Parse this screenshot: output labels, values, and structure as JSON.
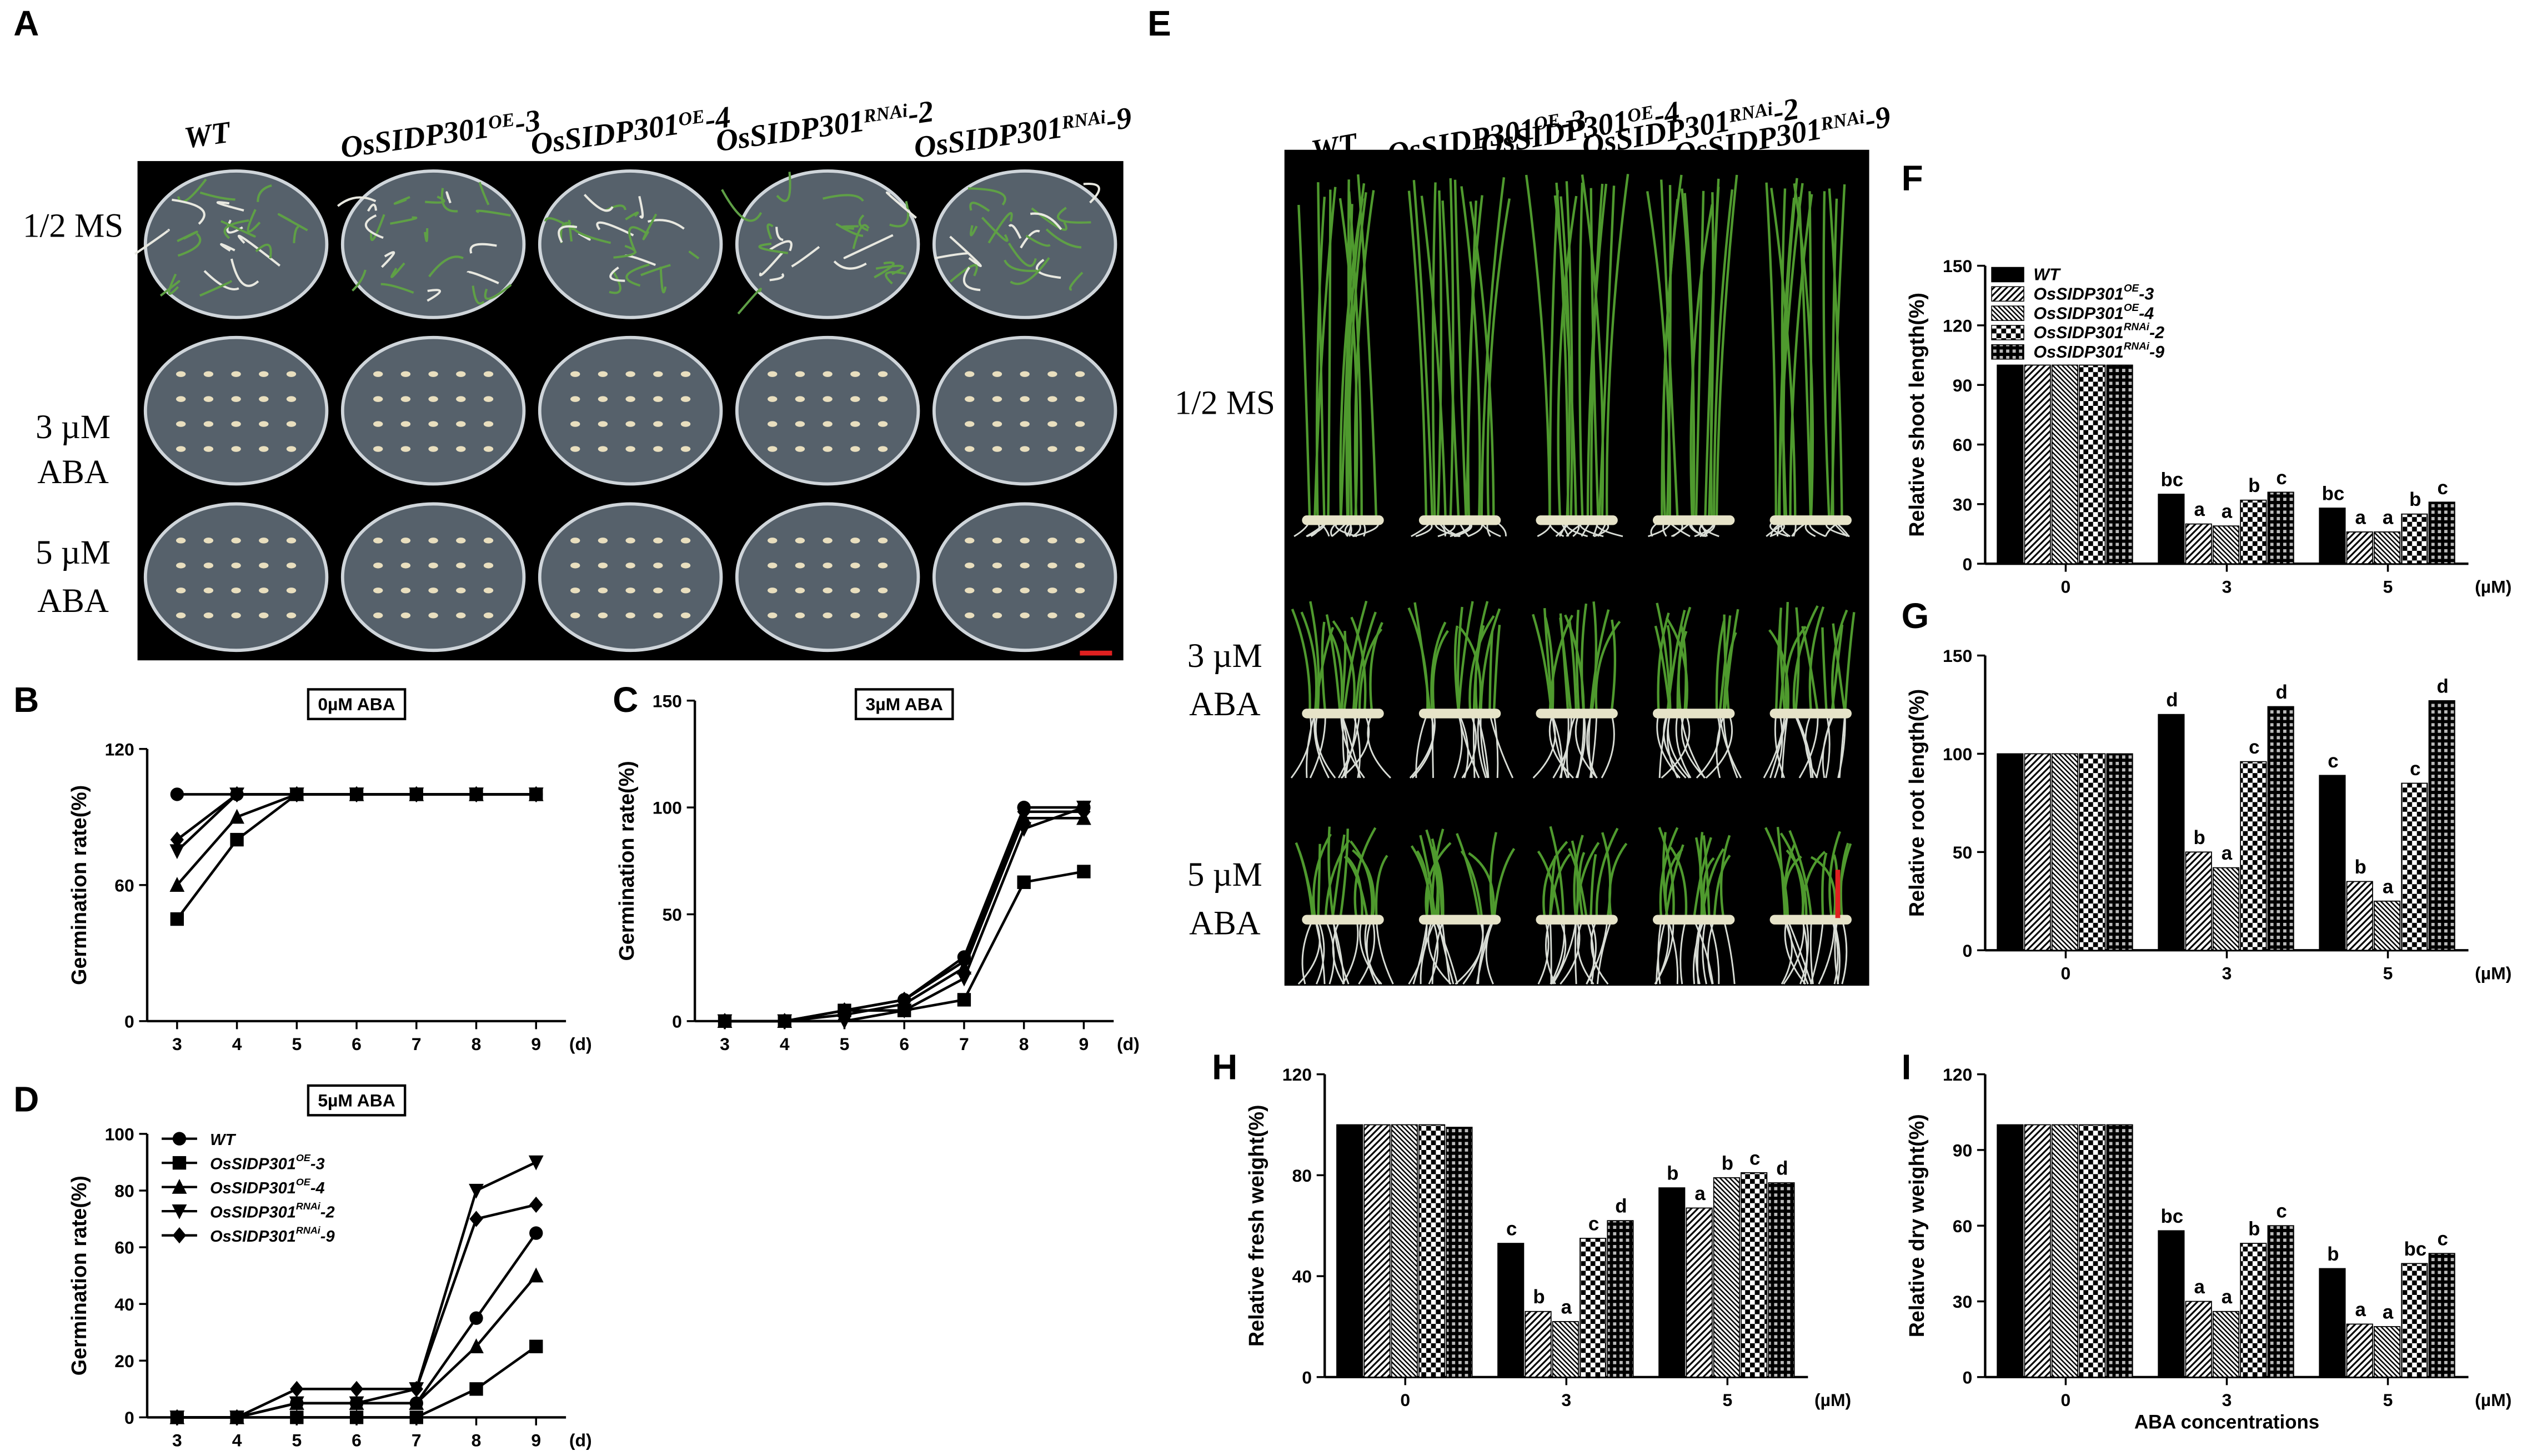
{
  "photo_panels": [
    {
      "panel": "A",
      "columns": [
        {
          "text": "WT"
        },
        {
          "text": "OsSIDP301",
          "sup": "OE",
          "suffix": "-3"
        },
        {
          "text": "OsSIDP301",
          "sup": "OE",
          "suffix": "-4"
        },
        {
          "text": "OsSIDP301",
          "sup": "RNAi",
          "suffix": "-2"
        },
        {
          "text": "OsSIDP301",
          "sup": "RNAi",
          "suffix": "-9"
        }
      ],
      "rows": [
        [
          "1/2 MS"
        ],
        [
          "3 µM",
          "ABA"
        ],
        [
          "5 µM",
          "ABA"
        ]
      ]
    },
    {
      "panel": "E",
      "columns": [
        {
          "text": "WT"
        },
        {
          "text": "OsSIDP301",
          "sup": "OE",
          "suffix": "-3"
        },
        {
          "text": "OsSIDP301",
          "sup": "OE",
          "suffix": "-4"
        },
        {
          "text": "OsSIDP301",
          "sup": "RNAi",
          "suffix": "-2"
        },
        {
          "text": "OsSIDP301",
          "sup": "RNAi",
          "suffix": "-9"
        }
      ],
      "rows": [
        [
          "1/2 MS"
        ],
        [
          "3 µM",
          "ABA"
        ],
        [
          "5 µM",
          "ABA"
        ]
      ]
    }
  ],
  "chart_data": [
    {
      "type": "line",
      "panel": "B",
      "title": "0µM ABA",
      "ylabel": "Germination rate(%)",
      "xlabel": "(d)",
      "x": [
        3,
        4,
        5,
        6,
        7,
        8,
        9
      ],
      "xlim": [
        2.5,
        9.5
      ],
      "xticks": [
        3,
        4,
        5,
        6,
        7,
        8,
        9
      ],
      "ylim": [
        0,
        120
      ],
      "yticks": [
        0,
        60,
        120
      ],
      "legend": false,
      "series": [
        {
          "name": {
            "text": "WT"
          },
          "color": "#000000",
          "marker": "circle",
          "values": [
            100,
            100,
            100,
            100,
            100,
            100,
            100
          ]
        },
        {
          "name": {
            "text": "OsSIDP301",
            "sup": "OE",
            "suffix": "-3"
          },
          "color": "#000000",
          "marker": "square",
          "values": [
            45,
            80,
            100,
            100,
            100,
            100,
            100
          ]
        },
        {
          "name": {
            "text": "OsSIDP301",
            "sup": "OE",
            "suffix": "-4"
          },
          "color": "#000000",
          "marker": "triangle-up",
          "values": [
            60,
            90,
            100,
            100,
            100,
            100,
            100
          ]
        },
        {
          "name": {
            "text": "OsSIDP301",
            "sup": "RNAi",
            "suffix": "-2"
          },
          "color": "#000000",
          "marker": "triangle-down",
          "values": [
            75,
            100,
            100,
            100,
            100,
            100,
            100
          ]
        },
        {
          "name": {
            "text": "OsSIDP301",
            "sup": "RNAi",
            "suffix": "-9"
          },
          "color": "#000000",
          "marker": "diamond",
          "values": [
            80,
            100,
            100,
            100,
            100,
            100,
            100
          ]
        }
      ]
    },
    {
      "type": "line",
      "panel": "C",
      "title": "3µM ABA",
      "ylabel": "Germination rate(%)",
      "xlabel": "(d)",
      "x": [
        3,
        4,
        5,
        6,
        7,
        8,
        9
      ],
      "xlim": [
        2.5,
        9.5
      ],
      "xticks": [
        3,
        4,
        5,
        6,
        7,
        8,
        9
      ],
      "ylim": [
        0,
        150
      ],
      "yticks": [
        0,
        50,
        100,
        150
      ],
      "legend": false,
      "series": [
        {
          "name": {
            "text": "WT"
          },
          "color": "#000000",
          "marker": "circle",
          "values": [
            0,
            0,
            5,
            10,
            30,
            100,
            100
          ]
        },
        {
          "name": {
            "text": "OsSIDP301",
            "sup": "OE",
            "suffix": "-3"
          },
          "color": "#000000",
          "marker": "square",
          "values": [
            0,
            0,
            5,
            5,
            10,
            65,
            70
          ]
        },
        {
          "name": {
            "text": "OsSIDP301",
            "sup": "OE",
            "suffix": "-4"
          },
          "color": "#000000",
          "marker": "triangle-up",
          "values": [
            0,
            0,
            3,
            8,
            25,
            95,
            95
          ]
        },
        {
          "name": {
            "text": "OsSIDP301",
            "sup": "RNAi",
            "suffix": "-2"
          },
          "color": "#000000",
          "marker": "triangle-down",
          "values": [
            0,
            0,
            0,
            5,
            20,
            90,
            100
          ]
        },
        {
          "name": {
            "text": "OsSIDP301",
            "sup": "RNAi",
            "suffix": "-9"
          },
          "color": "#000000",
          "marker": "diamond",
          "values": [
            0,
            0,
            5,
            10,
            28,
            98,
            98
          ]
        }
      ]
    },
    {
      "type": "line",
      "panel": "D",
      "title": "5µM ABA",
      "ylabel": "Germination rate(%)",
      "xlabel": "(d)",
      "x": [
        3,
        4,
        5,
        6,
        7,
        8,
        9
      ],
      "xlim": [
        2.5,
        9.5
      ],
      "xticks": [
        3,
        4,
        5,
        6,
        7,
        8,
        9
      ],
      "ylim": [
        0,
        100
      ],
      "yticks": [
        0,
        20,
        40,
        60,
        80,
        100
      ],
      "legend": true,
      "series": [
        {
          "name": {
            "text": "WT"
          },
          "color": "#000000",
          "marker": "circle",
          "values": [
            0,
            0,
            5,
            5,
            5,
            35,
            65
          ]
        },
        {
          "name": {
            "text": "OsSIDP301",
            "sup": "OE",
            "suffix": "-3"
          },
          "color": "#000000",
          "marker": "square",
          "values": [
            0,
            0,
            0,
            0,
            0,
            10,
            25
          ]
        },
        {
          "name": {
            "text": "OsSIDP301",
            "sup": "OE",
            "suffix": "-4"
          },
          "color": "#000000",
          "marker": "triangle-up",
          "values": [
            0,
            0,
            5,
            5,
            5,
            25,
            50
          ]
        },
        {
          "name": {
            "text": "OsSIDP301",
            "sup": "RNAi",
            "suffix": "-2"
          },
          "color": "#000000",
          "marker": "triangle-down",
          "values": [
            0,
            0,
            5,
            5,
            10,
            80,
            90
          ]
        },
        {
          "name": {
            "text": "OsSIDP301",
            "sup": "RNAi",
            "suffix": "-9"
          },
          "color": "#000000",
          "marker": "diamond",
          "values": [
            0,
            0,
            10,
            10,
            10,
            70,
            75
          ]
        }
      ]
    },
    {
      "type": "bar",
      "panel": "F",
      "ylabel": "Relative shoot length(%)",
      "x_unit": "(µM)",
      "categories": [
        "0",
        "3",
        "5"
      ],
      "ylim": [
        0,
        150
      ],
      "yticks": [
        0,
        30,
        60,
        90,
        120,
        150
      ],
      "legend": true,
      "series": [
        {
          "name": {
            "text": "WT"
          },
          "color": "#000000",
          "fill": "solid",
          "values": [
            100,
            35,
            28
          ],
          "letters": [
            null,
            "bc",
            "bc"
          ]
        },
        {
          "name": {
            "text": "OsSIDP301",
            "sup": "OE",
            "suffix": "-3"
          },
          "color": "#000000",
          "fill": "hatch-right",
          "values": [
            100,
            20,
            16
          ],
          "letters": [
            null,
            "a",
            "a"
          ]
        },
        {
          "name": {
            "text": "OsSIDP301",
            "sup": "OE",
            "suffix": "-4"
          },
          "color": "#000000",
          "fill": "hatch-left",
          "values": [
            100,
            19,
            16
          ],
          "letters": [
            null,
            "a",
            "a"
          ]
        },
        {
          "name": {
            "text": "OsSIDP301",
            "sup": "RNAi",
            "suffix": "-2"
          },
          "color": "#000000",
          "fill": "checker",
          "values": [
            100,
            32,
            25
          ],
          "letters": [
            null,
            "b",
            "b"
          ]
        },
        {
          "name": {
            "text": "OsSIDP301",
            "sup": "RNAi",
            "suffix": "-9"
          },
          "color": "#000000",
          "fill": "grid",
          "values": [
            100,
            36,
            31
          ],
          "letters": [
            null,
            "c",
            "c"
          ]
        }
      ]
    },
    {
      "type": "bar",
      "panel": "G",
      "ylabel": "Relative root length(%)",
      "x_unit": "(µM)",
      "categories": [
        "0",
        "3",
        "5"
      ],
      "ylim": [
        0,
        150
      ],
      "yticks": [
        0,
        50,
        100,
        150
      ],
      "legend": false,
      "series": [
        {
          "name": {
            "text": "WT"
          },
          "color": "#000000",
          "fill": "solid",
          "values": [
            100,
            120,
            89
          ],
          "letters": [
            null,
            "d",
            "c"
          ]
        },
        {
          "name": {
            "text": "OsSIDP301",
            "sup": "OE",
            "suffix": "-3"
          },
          "color": "#000000",
          "fill": "hatch-right",
          "values": [
            100,
            50,
            35
          ],
          "letters": [
            null,
            "b",
            "b"
          ]
        },
        {
          "name": {
            "text": "OsSIDP301",
            "sup": "OE",
            "suffix": "-4"
          },
          "color": "#000000",
          "fill": "hatch-left",
          "values": [
            100,
            42,
            25
          ],
          "letters": [
            null,
            "a",
            "a"
          ]
        },
        {
          "name": {
            "text": "OsSIDP301",
            "sup": "RNAi",
            "suffix": "-2"
          },
          "color": "#000000",
          "fill": "checker",
          "values": [
            100,
            96,
            85
          ],
          "letters": [
            null,
            "c",
            "c"
          ]
        },
        {
          "name": {
            "text": "OsSIDP301",
            "sup": "RNAi",
            "suffix": "-9"
          },
          "color": "#000000",
          "fill": "grid",
          "values": [
            100,
            124,
            127
          ],
          "letters": [
            null,
            "d",
            "d"
          ]
        }
      ]
    },
    {
      "type": "bar",
      "panel": "H",
      "ylabel": "Relative fresh weight(%)",
      "x_unit": "(µM)",
      "categories": [
        "0",
        "3",
        "5"
      ],
      "ylim": [
        0,
        120
      ],
      "yticks": [
        0,
        40,
        80,
        120
      ],
      "legend": false,
      "series": [
        {
          "name": {
            "text": "WT"
          },
          "color": "#000000",
          "fill": "solid",
          "values": [
            100,
            53,
            75
          ],
          "letters": [
            null,
            "c",
            "b"
          ]
        },
        {
          "name": {
            "text": "OsSIDP301",
            "sup": "OE",
            "suffix": "-3"
          },
          "color": "#000000",
          "fill": "hatch-right",
          "values": [
            100,
            26,
            67
          ],
          "letters": [
            null,
            "b",
            "a"
          ]
        },
        {
          "name": {
            "text": "OsSIDP301",
            "sup": "OE",
            "suffix": "-4"
          },
          "color": "#000000",
          "fill": "hatch-left",
          "values": [
            100,
            22,
            79
          ],
          "letters": [
            null,
            "a",
            "b"
          ]
        },
        {
          "name": {
            "text": "OsSIDP301",
            "sup": "RNAi",
            "suffix": "-2"
          },
          "color": "#000000",
          "fill": "checker",
          "values": [
            100,
            55,
            81
          ],
          "letters": [
            null,
            "c",
            "c"
          ]
        },
        {
          "name": {
            "text": "OsSIDP301",
            "sup": "RNAi",
            "suffix": "-9"
          },
          "color": "#000000",
          "fill": "grid",
          "values": [
            99,
            62,
            77
          ],
          "letters": [
            null,
            "d",
            "d"
          ]
        }
      ]
    },
    {
      "type": "bar",
      "panel": "I",
      "ylabel": "Relative dry weight(%)",
      "x_unit": "(µM)",
      "xlabel": "ABA concentrations",
      "categories": [
        "0",
        "3",
        "5"
      ],
      "ylim": [
        0,
        120
      ],
      "yticks": [
        0,
        30,
        60,
        90,
        120
      ],
      "legend": false,
      "series": [
        {
          "name": {
            "text": "WT"
          },
          "color": "#000000",
          "fill": "solid",
          "values": [
            100,
            58,
            43
          ],
          "letters": [
            null,
            "bc",
            "b"
          ]
        },
        {
          "name": {
            "text": "OsSIDP301",
            "sup": "OE",
            "suffix": "-3"
          },
          "color": "#000000",
          "fill": "hatch-right",
          "values": [
            100,
            30,
            21
          ],
          "letters": [
            null,
            "a",
            "a"
          ]
        },
        {
          "name": {
            "text": "OsSIDP301",
            "sup": "OE",
            "suffix": "-4"
          },
          "color": "#000000",
          "fill": "hatch-left",
          "values": [
            100,
            26,
            20
          ],
          "letters": [
            null,
            "a",
            "a"
          ]
        },
        {
          "name": {
            "text": "OsSIDP301",
            "sup": "RNAi",
            "suffix": "-2"
          },
          "color": "#000000",
          "fill": "checker",
          "values": [
            100,
            53,
            45
          ],
          "letters": [
            null,
            "b",
            "bc"
          ]
        },
        {
          "name": {
            "text": "OsSIDP301",
            "sup": "RNAi",
            "suffix": "-9"
          },
          "color": "#000000",
          "fill": "grid",
          "values": [
            100,
            60,
            49
          ],
          "letters": [
            null,
            "c",
            "c"
          ]
        }
      ]
    }
  ]
}
